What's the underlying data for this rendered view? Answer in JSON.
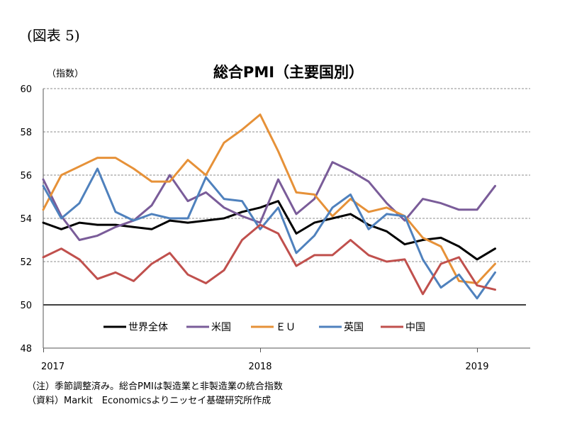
{
  "figure_label": "(図表 5)",
  "chart_data": {
    "type": "line",
    "title": "総合PMI（主要国別）",
    "ylabel": "（指数）",
    "xlabel": "",
    "ylim": [
      48,
      60
    ],
    "yticks": [
      "48",
      "50",
      "52",
      "54",
      "56",
      "58",
      "60"
    ],
    "x_tick_labels": [
      {
        "index": 0,
        "label": "2017"
      },
      {
        "index": 12,
        "label": "2018"
      },
      {
        "index": 24,
        "label": "2019"
      }
    ],
    "reference_line": 50,
    "grid": "horizontal dashed",
    "legend_position": "bottom-inside",
    "x": [
      "2017-01",
      "2017-02",
      "2017-03",
      "2017-04",
      "2017-05",
      "2017-06",
      "2017-07",
      "2017-08",
      "2017-09",
      "2017-10",
      "2017-11",
      "2017-12",
      "2018-01",
      "2018-02",
      "2018-03",
      "2018-04",
      "2018-05",
      "2018-06",
      "2018-07",
      "2018-08",
      "2018-09",
      "2018-10",
      "2018-11",
      "2018-12",
      "2019-01",
      "2019-02"
    ],
    "series": [
      {
        "name": "世界全体",
        "color": "#000000",
        "values": [
          53.8,
          53.5,
          53.8,
          53.7,
          53.7,
          53.6,
          53.5,
          53.9,
          53.8,
          53.9,
          54.0,
          54.3,
          54.5,
          54.8,
          53.3,
          53.8,
          54.0,
          54.2,
          53.7,
          53.4,
          52.8,
          53.0,
          53.1,
          52.7,
          52.1,
          52.6
        ]
      },
      {
        "name": "米国",
        "color": "#7a5c99",
        "values": [
          55.8,
          54.1,
          53.0,
          53.2,
          53.6,
          53.9,
          54.6,
          56.0,
          54.8,
          55.2,
          54.5,
          54.1,
          53.8,
          55.8,
          54.2,
          54.9,
          56.6,
          56.2,
          55.7,
          54.7,
          53.9,
          54.9,
          54.7,
          54.4,
          54.4,
          55.5
        ]
      },
      {
        "name": "ＥＵ",
        "color": "#e69138",
        "values": [
          54.4,
          56.0,
          56.4,
          56.8,
          56.8,
          56.3,
          55.7,
          55.7,
          56.7,
          56.0,
          57.5,
          58.1,
          58.8,
          57.1,
          55.2,
          55.1,
          54.1,
          54.9,
          54.3,
          54.5,
          54.1,
          53.1,
          52.7,
          51.1,
          51.0,
          51.9
        ]
      },
      {
        "name": "英国",
        "color": "#4f81bd",
        "values": [
          55.5,
          54.0,
          54.7,
          56.3,
          54.3,
          53.9,
          54.2,
          54.0,
          54.0,
          55.9,
          54.9,
          54.8,
          53.5,
          54.5,
          52.4,
          53.2,
          54.5,
          55.1,
          53.5,
          54.2,
          54.1,
          52.1,
          50.8,
          51.4,
          50.3,
          51.5
        ]
      },
      {
        "name": "中国",
        "color": "#c0504d",
        "values": [
          52.2,
          52.6,
          52.1,
          51.2,
          51.5,
          51.1,
          51.9,
          52.4,
          51.4,
          51.0,
          51.6,
          53.0,
          53.7,
          53.3,
          51.8,
          52.3,
          52.3,
          53.0,
          52.3,
          52.0,
          52.1,
          50.5,
          51.9,
          52.2,
          50.9,
          50.7
        ]
      }
    ]
  },
  "notes": [
    "（注）季節調整済み。総合PMIは製造業と非製造業の統合指数",
    "（資料）Markit　Economicsよりニッセイ基礎研究所作成"
  ]
}
